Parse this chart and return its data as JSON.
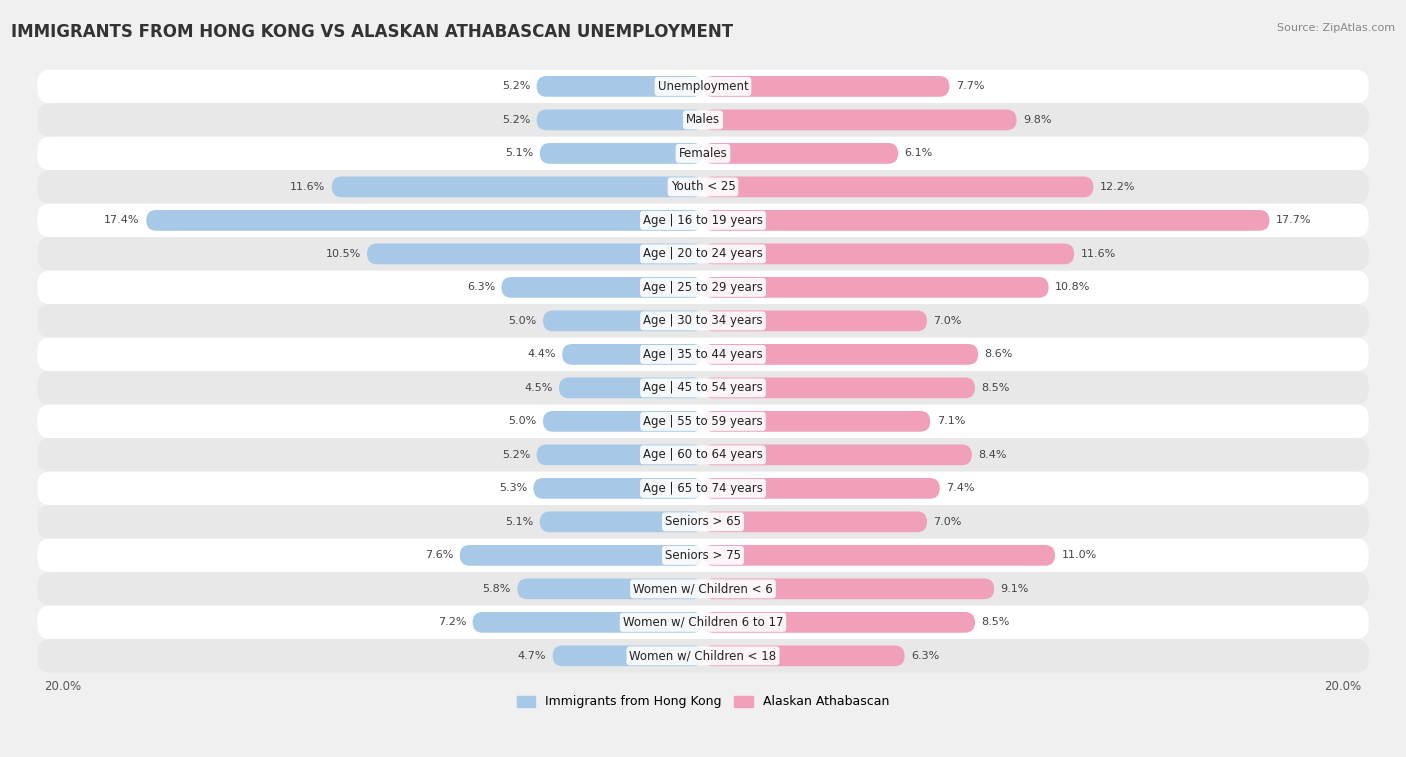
{
  "title": "IMMIGRANTS FROM HONG KONG VS ALASKAN ATHABASCAN UNEMPLOYMENT",
  "source": "Source: ZipAtlas.com",
  "categories": [
    "Unemployment",
    "Males",
    "Females",
    "Youth < 25",
    "Age | 16 to 19 years",
    "Age | 20 to 24 years",
    "Age | 25 to 29 years",
    "Age | 30 to 34 years",
    "Age | 35 to 44 years",
    "Age | 45 to 54 years",
    "Age | 55 to 59 years",
    "Age | 60 to 64 years",
    "Age | 65 to 74 years",
    "Seniors > 65",
    "Seniors > 75",
    "Women w/ Children < 6",
    "Women w/ Children 6 to 17",
    "Women w/ Children < 18"
  ],
  "left_values": [
    5.2,
    5.2,
    5.1,
    11.6,
    17.4,
    10.5,
    6.3,
    5.0,
    4.4,
    4.5,
    5.0,
    5.2,
    5.3,
    5.1,
    7.6,
    5.8,
    7.2,
    4.7
  ],
  "right_values": [
    7.7,
    9.8,
    6.1,
    12.2,
    17.7,
    11.6,
    10.8,
    7.0,
    8.6,
    8.5,
    7.1,
    8.4,
    7.4,
    7.0,
    11.0,
    9.1,
    8.5,
    6.3
  ],
  "left_color": "#a8c8e8",
  "right_color": "#f0a0b8",
  "left_label": "Immigrants from Hong Kong",
  "right_label": "Alaskan Athabascan",
  "max_value": 20.0,
  "bg_color": "#f0f0f0",
  "row_color_light": "#ffffff",
  "row_color_dark": "#e8e8e8",
  "title_fontsize": 12,
  "label_fontsize": 8.5,
  "value_fontsize": 8.0,
  "axis_fontsize": 8.5,
  "legend_fontsize": 9
}
